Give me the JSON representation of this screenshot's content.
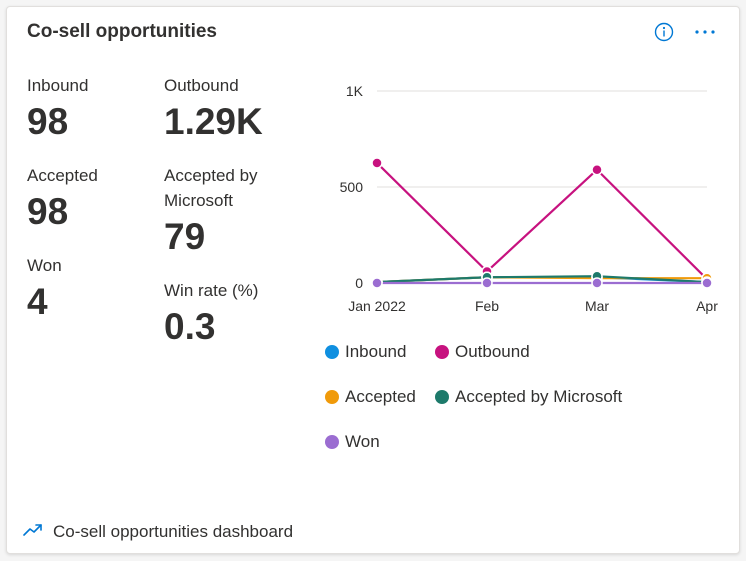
{
  "card": {
    "title": "Co-sell opportunities",
    "info_icon": "info-icon",
    "more_icon": "more-options-icon",
    "footer_link": "Co-sell opportunities dashboard",
    "footer_icon": "trend-line-icon"
  },
  "kpis": [
    {
      "label": "Inbound",
      "value": "98"
    },
    {
      "label": "Outbound",
      "value": "1.29K"
    },
    {
      "label": "Accepted",
      "value": "98"
    },
    {
      "label": "Accepted by\nMicrosoft",
      "value": "79"
    },
    {
      "label": "Won",
      "value": "4"
    },
    {
      "label": "Win rate (%)",
      "value": "0.3"
    }
  ],
  "colors": {
    "accent": "#0078d4",
    "inbound": "#0f8fe0",
    "outbound": "#c7127f",
    "accepted": "#f09a0a",
    "accepted_by_microsoft": "#1d7a6b",
    "won": "#9b6dd1",
    "grid": "#e1dfdd"
  },
  "chart_data": {
    "type": "line",
    "x": [
      "Jan 2022",
      "Feb",
      "Mar",
      "Apr"
    ],
    "yticks": [
      "0",
      "500",
      "1K"
    ],
    "ylim": [
      0,
      1000
    ],
    "grid": true,
    "legend_position": "bottom",
    "series": [
      {
        "name": "Inbound",
        "color": "#0f8fe0",
        "values": [
          5,
          30,
          30,
          5
        ]
      },
      {
        "name": "Outbound",
        "color": "#c7127f",
        "values": [
          625,
          60,
          590,
          20
        ]
      },
      {
        "name": "Accepted",
        "color": "#f09a0a",
        "values": [
          5,
          30,
          25,
          25
        ]
      },
      {
        "name": "Accepted by Microsoft",
        "color": "#1d7a6b",
        "values": [
          5,
          30,
          35,
          5
        ]
      },
      {
        "name": "Won",
        "color": "#9b6dd1",
        "values": [
          0,
          0,
          0,
          0
        ]
      }
    ]
  }
}
